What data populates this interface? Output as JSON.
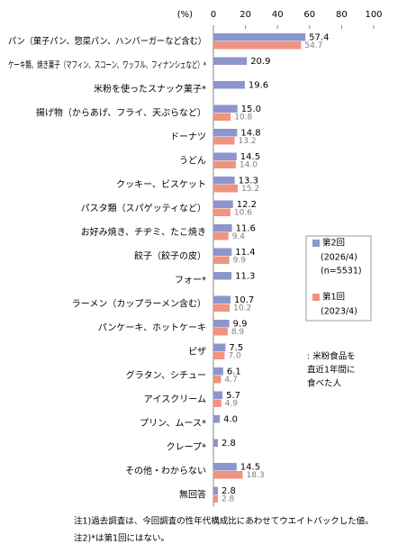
{
  "chart_data": {
    "type": "bar",
    "orientation": "horizontal",
    "unit": "(%)",
    "categories": [
      "パン（菓子パン、惣菜パン、ハンバーガーなど含む）",
      "ケーキ類、焼き菓子（マフィン、スコーン、ワッフル、フィナンシェなど）*",
      "米粉を使ったスナック菓子*",
      "揚げ物（からあげ、フライ、天ぷらなど）",
      "ドーナツ",
      "うどん",
      "クッキー、ビスケット",
      "パスタ類（スパゲッティなど）",
      "お好み焼き、チヂミ、たこ焼き",
      "餃子（餃子の皮）",
      "フォー*",
      "ラーメン（カップラーメン含む）",
      "パンケーキ、ホットケーキ",
      "ピザ",
      "グラタン、シチュー",
      "アイスクリーム",
      "プリン、ムース*",
      "クレープ*",
      "その他・わからない",
      "無回答"
    ],
    "series": [
      {
        "name": "第2回",
        "legend_notes": [
          "(2026/4)",
          "(n=5531)"
        ],
        "color": "#8e95cc",
        "values": [
          57.4,
          20.9,
          19.6,
          15.0,
          14.8,
          14.5,
          13.3,
          12.2,
          11.6,
          11.4,
          11.3,
          10.7,
          9.9,
          7.5,
          6.1,
          5.7,
          4.0,
          2.8,
          14.5,
          2.8
        ],
        "value_labels": [
          "57.4",
          "20.9",
          "19.6",
          "15.0",
          "14.8",
          "14.5",
          "13.3",
          "12.2",
          "11.6",
          "11.4",
          "11.3",
          "10.7",
          "9.9",
          "7.5",
          "6.1",
          "5.7",
          "4.0",
          "2.8",
          "14.5",
          "2.8"
        ]
      },
      {
        "name": "第1回",
        "legend_notes": [
          "(2023/4)"
        ],
        "color": "#f0937f",
        "values": [
          54.7,
          null,
          null,
          10.8,
          13.2,
          14.0,
          15.2,
          10.6,
          9.4,
          9.9,
          null,
          10.2,
          8.9,
          7.0,
          4.7,
          4.9,
          null,
          null,
          18.3,
          2.8
        ],
        "value_labels": [
          "54.7",
          null,
          null,
          "10.8",
          "13.2",
          "14.0",
          "15.2",
          "10.6",
          "9.4",
          "9.9",
          null,
          "10.2",
          "8.9",
          "7.0",
          "4.7",
          "4.9",
          null,
          null,
          "18.3",
          "2.8"
        ]
      }
    ],
    "xlim": [
      0,
      100
    ],
    "xticks": [
      0,
      20,
      40,
      60,
      80,
      100
    ],
    "grid": false,
    "annotation": [
      ": 米粉食品を",
      "直近1年間に",
      "食べた人"
    ],
    "footnotes": [
      "注1)過去調査は、今回調査の性年代構成比にあわせてウエイトバックした値。",
      "注2)*は第1回にはない。"
    ]
  }
}
